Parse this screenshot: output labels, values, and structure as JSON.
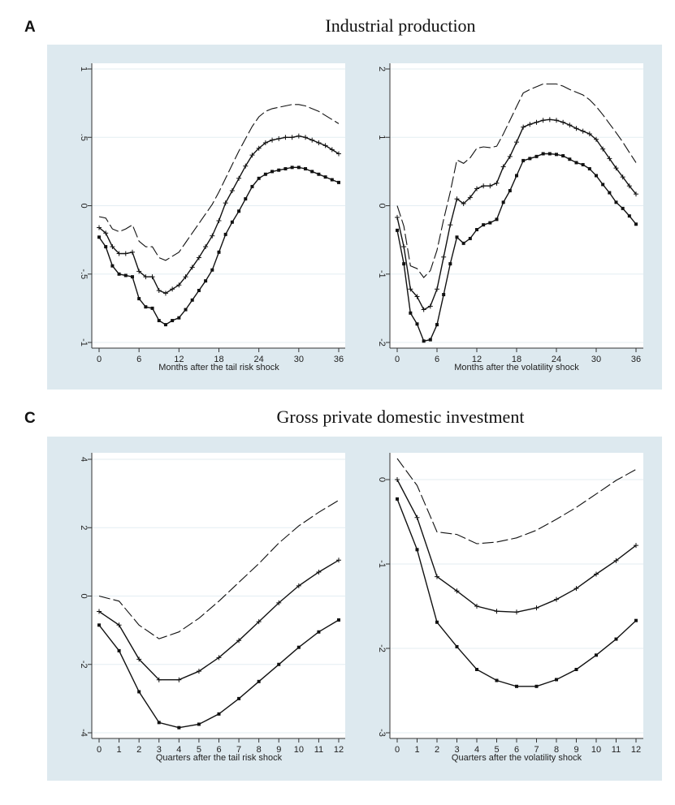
{
  "chart_data": [
    {
      "panel_label": "A",
      "panel_title": "Industrial production",
      "plots": [
        {
          "type": "line",
          "xlabel": "Months after the tail risk shock",
          "xlim": [
            0,
            36
          ],
          "ylim": [
            -1,
            1
          ],
          "xticks": [
            0,
            6,
            12,
            18,
            24,
            30,
            36
          ],
          "yticks": [
            -1,
            -0.5,
            0,
            0.5,
            1
          ],
          "ytick_labels": [
            "-1",
            "-.5",
            "0",
            ".5",
            "1"
          ],
          "grid": true,
          "x": [
            0,
            1,
            2,
            3,
            4,
            5,
            6,
            7,
            8,
            9,
            10,
            11,
            12,
            13,
            14,
            15,
            16,
            17,
            18,
            19,
            20,
            21,
            22,
            23,
            24,
            25,
            26,
            27,
            28,
            29,
            30,
            31,
            32,
            33,
            34,
            35,
            36
          ],
          "series": [
            {
              "name": "upper",
              "style": "dashed",
              "values": [
                -0.08,
                -0.09,
                -0.17,
                -0.19,
                -0.17,
                -0.14,
                -0.26,
                -0.3,
                -0.3,
                -0.38,
                -0.4,
                -0.37,
                -0.34,
                -0.27,
                -0.2,
                -0.13,
                -0.06,
                0.01,
                0.1,
                0.2,
                0.3,
                0.4,
                0.49,
                0.58,
                0.65,
                0.69,
                0.71,
                0.72,
                0.73,
                0.74,
                0.74,
                0.73,
                0.71,
                0.69,
                0.66,
                0.63,
                0.6
              ]
            },
            {
              "name": "point-estimate",
              "style": "plus",
              "values": [
                -0.16,
                -0.2,
                -0.3,
                -0.35,
                -0.35,
                -0.34,
                -0.48,
                -0.52,
                -0.52,
                -0.62,
                -0.64,
                -0.61,
                -0.58,
                -0.52,
                -0.45,
                -0.38,
                -0.3,
                -0.22,
                -0.11,
                0.02,
                0.11,
                0.2,
                0.29,
                0.37,
                0.42,
                0.46,
                0.48,
                0.49,
                0.5,
                0.5,
                0.51,
                0.5,
                0.48,
                0.46,
                0.44,
                0.41,
                0.38
              ]
            },
            {
              "name": "lower",
              "style": "dot",
              "values": [
                -0.23,
                -0.3,
                -0.44,
                -0.5,
                -0.51,
                -0.52,
                -0.68,
                -0.74,
                -0.75,
                -0.84,
                -0.87,
                -0.84,
                -0.82,
                -0.76,
                -0.69,
                -0.62,
                -0.55,
                -0.47,
                -0.34,
                -0.21,
                -0.12,
                -0.04,
                0.05,
                0.14,
                0.2,
                0.23,
                0.25,
                0.26,
                0.27,
                0.28,
                0.28,
                0.27,
                0.25,
                0.23,
                0.21,
                0.19,
                0.17
              ]
            }
          ]
        },
        {
          "type": "line",
          "xlabel": "Months after the volatility shock",
          "xlim": [
            0,
            36
          ],
          "ylim": [
            -2,
            2
          ],
          "xticks": [
            0,
            6,
            12,
            18,
            24,
            30,
            36
          ],
          "yticks": [
            -2,
            -1,
            0,
            1,
            2
          ],
          "ytick_labels": [
            "-2",
            "-1",
            "0",
            "1",
            "2"
          ],
          "grid": true,
          "x": [
            0,
            1,
            2,
            3,
            4,
            5,
            6,
            7,
            8,
            9,
            10,
            11,
            12,
            13,
            14,
            15,
            16,
            17,
            18,
            19,
            20,
            21,
            22,
            23,
            24,
            25,
            26,
            27,
            28,
            29,
            30,
            31,
            32,
            33,
            34,
            35,
            36
          ],
          "series": [
            {
              "name": "upper",
              "style": "dashed",
              "values": [
                0.0,
                -0.3,
                -0.88,
                -0.92,
                -1.05,
                -0.95,
                -0.65,
                -0.2,
                0.2,
                0.67,
                0.62,
                0.7,
                0.84,
                0.86,
                0.85,
                0.87,
                1.05,
                1.25,
                1.45,
                1.65,
                1.7,
                1.74,
                1.78,
                1.78,
                1.78,
                1.75,
                1.7,
                1.66,
                1.62,
                1.55,
                1.45,
                1.33,
                1.2,
                1.07,
                0.93,
                0.78,
                0.63
              ]
            },
            {
              "name": "point-estimate",
              "style": "plus",
              "values": [
                -0.17,
                -0.6,
                -1.22,
                -1.33,
                -1.52,
                -1.47,
                -1.22,
                -0.75,
                -0.28,
                0.1,
                0.03,
                0.12,
                0.25,
                0.29,
                0.29,
                0.33,
                0.57,
                0.72,
                0.93,
                1.15,
                1.19,
                1.22,
                1.25,
                1.26,
                1.25,
                1.22,
                1.18,
                1.13,
                1.09,
                1.05,
                0.97,
                0.83,
                0.69,
                0.55,
                0.42,
                0.29,
                0.17
              ]
            },
            {
              "name": "lower",
              "style": "dot",
              "values": [
                -0.36,
                -0.85,
                -1.57,
                -1.73,
                -1.98,
                -1.96,
                -1.74,
                -1.3,
                -0.85,
                -0.46,
                -0.55,
                -0.48,
                -0.35,
                -0.28,
                -0.25,
                -0.2,
                0.05,
                0.22,
                0.44,
                0.66,
                0.69,
                0.72,
                0.76,
                0.76,
                0.75,
                0.73,
                0.68,
                0.63,
                0.6,
                0.54,
                0.44,
                0.31,
                0.19,
                0.05,
                -0.04,
                -0.15,
                -0.27
              ]
            }
          ]
        }
      ]
    },
    {
      "panel_label": "C",
      "panel_title": "Gross private domestic investment",
      "plots": [
        {
          "type": "line",
          "xlabel": "Quarters after the tail risk shock",
          "xlim": [
            0,
            12
          ],
          "ylim": [
            -4,
            4
          ],
          "xticks": [
            0,
            1,
            2,
            3,
            4,
            5,
            6,
            7,
            8,
            9,
            10,
            11,
            12
          ],
          "yticks": [
            -4,
            -2,
            0,
            2,
            4
          ],
          "ytick_labels": [
            "-4",
            "-2",
            "0",
            "2",
            "4"
          ],
          "grid": true,
          "x": [
            0,
            1,
            2,
            3,
            4,
            5,
            6,
            7,
            8,
            9,
            10,
            11,
            12
          ],
          "series": [
            {
              "name": "upper",
              "style": "dashed",
              "values": [
                0,
                -0.15,
                -0.85,
                -1.25,
                -1.05,
                -0.65,
                -0.15,
                0.4,
                0.95,
                1.55,
                2.05,
                2.45,
                2.8
              ]
            },
            {
              "name": "point-estimate",
              "style": "plus",
              "values": [
                -0.45,
                -0.85,
                -1.85,
                -2.45,
                -2.45,
                -2.2,
                -1.8,
                -1.3,
                -0.75,
                -0.2,
                0.3,
                0.7,
                1.05
              ]
            },
            {
              "name": "lower",
              "style": "dot",
              "values": [
                -0.85,
                -1.6,
                -2.8,
                -3.7,
                -3.85,
                -3.75,
                -3.45,
                -3.0,
                -2.5,
                -2.0,
                -1.5,
                -1.05,
                -0.7
              ]
            }
          ]
        },
        {
          "type": "line",
          "xlabel": "Quarters after the volatility shock",
          "xlim": [
            0,
            12
          ],
          "ylim": [
            -3,
            0.25
          ],
          "xticks": [
            0,
            1,
            2,
            3,
            4,
            5,
            6,
            7,
            8,
            9,
            10,
            11,
            12
          ],
          "yticks": [
            -3,
            -2,
            -1,
            0
          ],
          "ytick_labels": [
            "-3",
            "-2",
            "-1",
            "0"
          ],
          "grid": true,
          "x": [
            0,
            1,
            2,
            3,
            4,
            5,
            6,
            7,
            8,
            9,
            10,
            11,
            12
          ],
          "series": [
            {
              "name": "upper",
              "style": "dashed",
              "values": [
                0.25,
                -0.07,
                -0.62,
                -0.65,
                -0.76,
                -0.74,
                -0.69,
                -0.6,
                -0.47,
                -0.33,
                -0.17,
                -0.01,
                0.12
              ]
            },
            {
              "name": "point-estimate",
              "style": "plus",
              "values": [
                0,
                -0.45,
                -1.15,
                -1.32,
                -1.5,
                -1.56,
                -1.57,
                -1.52,
                -1.42,
                -1.29,
                -1.12,
                -0.96,
                -0.78
              ]
            },
            {
              "name": "lower",
              "style": "dot",
              "values": [
                -0.23,
                -0.83,
                -1.69,
                -1.98,
                -2.25,
                -2.38,
                -2.45,
                -2.45,
                -2.37,
                -2.25,
                -2.08,
                -1.89,
                -1.67
              ]
            }
          ]
        }
      ]
    }
  ],
  "colors": {
    "panel_bg": "#dde9ef",
    "plot_bg": "#ffffff",
    "line": "#111111",
    "grid": "#e3edf2"
  }
}
